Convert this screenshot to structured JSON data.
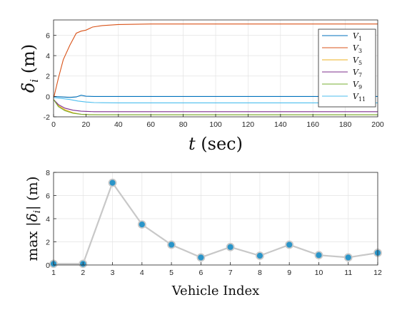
{
  "chart_data": [
    {
      "type": "line",
      "xlabel": "t (sec)",
      "ylabel": "δi (m)",
      "xlim": [
        0,
        200
      ],
      "ylim": [
        -2,
        7.5
      ],
      "xticks": [
        0,
        20,
        40,
        60,
        80,
        100,
        120,
        140,
        160,
        180,
        200
      ],
      "yticks": [
        -2,
        0,
        2,
        4,
        6
      ],
      "grid": true,
      "legend_position": "right",
      "series": [
        {
          "name": "V1",
          "color": "#0072BD",
          "x": [
            0,
            5,
            10,
            14,
            17,
            20,
            25,
            40,
            200
          ],
          "y": [
            0,
            -0.05,
            -0.1,
            -0.05,
            0.12,
            0.02,
            0,
            0,
            0
          ]
        },
        {
          "name": "V3",
          "color": "#D95319",
          "x": [
            0,
            3,
            6,
            10,
            14,
            17,
            20,
            24,
            30,
            40,
            60,
            200
          ],
          "y": [
            -0.2,
            1.8,
            3.6,
            5.0,
            6.2,
            6.4,
            6.5,
            6.8,
            6.95,
            7.05,
            7.1,
            7.1
          ]
        },
        {
          "name": "V5",
          "color": "#EDB120",
          "x": [
            0,
            3,
            7,
            12,
            17,
            22,
            30,
            40,
            200
          ],
          "y": [
            -0.3,
            -0.9,
            -1.3,
            -1.6,
            -1.75,
            -1.78,
            -1.8,
            -1.8,
            -1.8
          ]
        },
        {
          "name": "V7",
          "color": "#7E2F8E",
          "x": [
            0,
            3,
            7,
            12,
            17,
            25,
            40,
            200
          ],
          "y": [
            -0.3,
            -0.8,
            -1.15,
            -1.35,
            -1.45,
            -1.5,
            -1.5,
            -1.5
          ]
        },
        {
          "name": "V9",
          "color": "#77AC30",
          "x": [
            0,
            3,
            7,
            12,
            17,
            22,
            30,
            200
          ],
          "y": [
            -0.3,
            -1.0,
            -1.4,
            -1.65,
            -1.75,
            -1.8,
            -1.8,
            -1.8
          ]
        },
        {
          "name": "V11",
          "color": "#4DBEEE",
          "x": [
            0,
            5,
            10,
            15,
            20,
            25,
            30,
            40,
            200
          ],
          "y": [
            -0.1,
            -0.2,
            -0.3,
            -0.45,
            -0.55,
            -0.6,
            -0.62,
            -0.63,
            -0.63
          ]
        }
      ],
      "legend": [
        "V1",
        "V3",
        "V5",
        "V7",
        "V9",
        "V11"
      ]
    },
    {
      "type": "line",
      "xlabel": "Vehicle Index",
      "ylabel": "max |δi| (m)",
      "xlim": [
        1,
        12
      ],
      "ylim": [
        0,
        8
      ],
      "xticks": [
        1,
        2,
        3,
        4,
        5,
        6,
        7,
        8,
        9,
        10,
        11,
        12
      ],
      "yticks": [
        0,
        2,
        4,
        6,
        8
      ],
      "grid": true,
      "line_color": "#c8c8c8",
      "marker_color": "#2a95c9",
      "series": [
        {
          "x": [
            1,
            2,
            3,
            4,
            5,
            6,
            7,
            8,
            9,
            10,
            11,
            12
          ],
          "y": [
            0.1,
            0.1,
            7.1,
            3.5,
            1.75,
            0.65,
            1.55,
            0.8,
            1.75,
            0.85,
            0.65,
            1.05
          ]
        }
      ]
    }
  ]
}
